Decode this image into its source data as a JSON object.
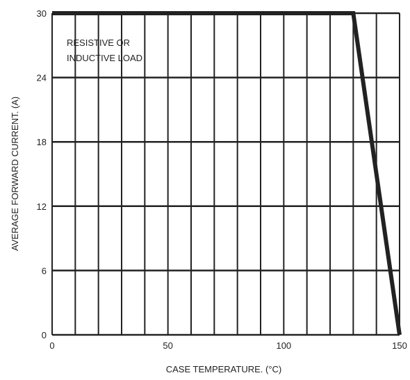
{
  "chart_data": {
    "type": "line",
    "title": "",
    "xlabel": "CASE  TEMPERATURE. (°C)",
    "ylabel": "AVERAGE FORWARD CURRENT. (A)",
    "xlim": [
      0,
      150
    ],
    "ylim": [
      0,
      30
    ],
    "x_ticks": [
      0,
      50,
      100,
      150
    ],
    "y_ticks": [
      0,
      6,
      12,
      18,
      24,
      30
    ],
    "x_tick_labels": [
      "0",
      "50",
      "100",
      "150"
    ],
    "y_tick_labels": [
      "0",
      "6",
      "12",
      "18",
      "24",
      "30"
    ],
    "grid": true,
    "x_grid_step": 10,
    "y_grid_step": 6,
    "annotation": [
      "RESISTIVE OR",
      "INDUCTIVE LOAD"
    ],
    "series": [
      {
        "x": [
          0,
          130,
          150
        ],
        "y": [
          30,
          30,
          0
        ]
      }
    ],
    "colors": {
      "line": "#222222",
      "grid": "#222222"
    }
  }
}
